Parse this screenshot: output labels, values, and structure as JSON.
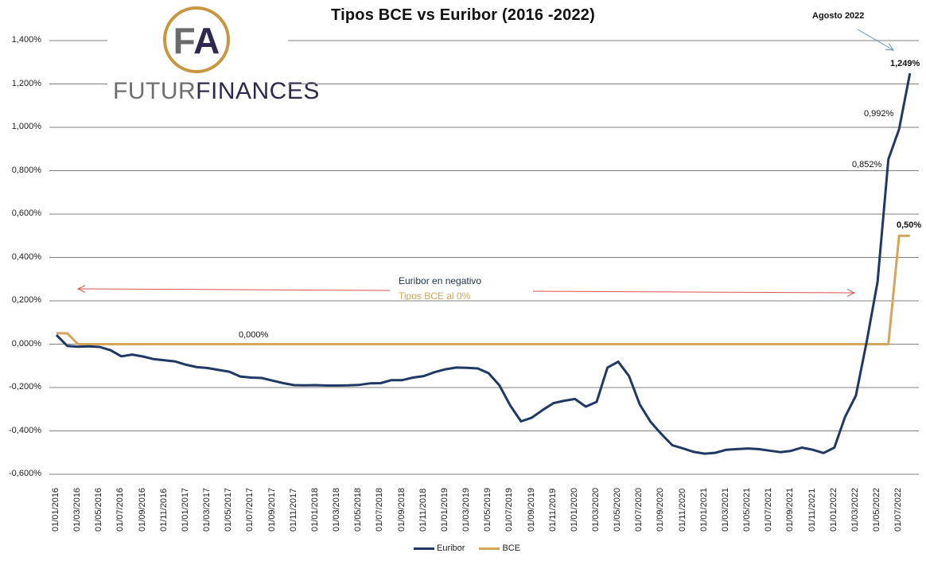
{
  "chart_data": {
    "type": "line",
    "title": "Tipos BCE vs Euribor (2016 -2022)",
    "xlabel": "",
    "ylabel": "",
    "ylim": [
      -0.6,
      1.4
    ],
    "yticks": [
      "1,400%",
      "1,200%",
      "1,000%",
      "0,800%",
      "0,600%",
      "0,400%",
      "0,200%",
      "0,000%",
      "-0,200%",
      "-0,400%",
      "-0,600%"
    ],
    "ytick_values": [
      1.4,
      1.2,
      1.0,
      0.8,
      0.6,
      0.4,
      0.2,
      0.0,
      -0.2,
      -0.4,
      -0.6
    ],
    "grid": true,
    "legend_position": "bottom",
    "x_tick_labels": [
      "01/01/2016",
      "01/03/2016",
      "01/05/2016",
      "01/07/2016",
      "01/09/2016",
      "01/11/2016",
      "01/01/2017",
      "01/03/2017",
      "01/05/2017",
      "01/07/2017",
      "01/09/2017",
      "01/11/2017",
      "01/01/2018",
      "01/03/2018",
      "01/05/2018",
      "01/07/2018",
      "01/09/2018",
      "01/11/2018",
      "01/01/2019",
      "01/03/2019",
      "01/05/2019",
      "01/07/2019",
      "01/09/2019",
      "01/11/2019",
      "01/01/2020",
      "01/03/2020",
      "01/05/2020",
      "01/07/2020",
      "01/09/2020",
      "01/11/2020",
      "01/01/2021",
      "01/03/2021",
      "01/05/2021",
      "01/07/2021",
      "01/09/2021",
      "01/11/2021",
      "01/01/2022",
      "01/03/2022",
      "01/05/2022",
      "01/07/2022"
    ],
    "x": [
      "2016-01",
      "2016-02",
      "2016-03",
      "2016-04",
      "2016-05",
      "2016-06",
      "2016-07",
      "2016-08",
      "2016-09",
      "2016-10",
      "2016-11",
      "2016-12",
      "2017-01",
      "2017-02",
      "2017-03",
      "2017-04",
      "2017-05",
      "2017-06",
      "2017-07",
      "2017-08",
      "2017-09",
      "2017-10",
      "2017-11",
      "2017-12",
      "2018-01",
      "2018-02",
      "2018-03",
      "2018-04",
      "2018-05",
      "2018-06",
      "2018-07",
      "2018-08",
      "2018-09",
      "2018-10",
      "2018-11",
      "2018-12",
      "2019-01",
      "2019-02",
      "2019-03",
      "2019-04",
      "2019-05",
      "2019-06",
      "2019-07",
      "2019-08",
      "2019-09",
      "2019-10",
      "2019-11",
      "2019-12",
      "2020-01",
      "2020-02",
      "2020-03",
      "2020-04",
      "2020-05",
      "2020-06",
      "2020-07",
      "2020-08",
      "2020-09",
      "2020-10",
      "2020-11",
      "2020-12",
      "2021-01",
      "2021-02",
      "2021-03",
      "2021-04",
      "2021-05",
      "2021-06",
      "2021-07",
      "2021-08",
      "2021-09",
      "2021-10",
      "2021-11",
      "2021-12",
      "2022-01",
      "2022-02",
      "2022-03",
      "2022-04",
      "2022-05",
      "2022-06",
      "2022-07",
      "2022-08"
    ],
    "series": [
      {
        "name": "Euribor",
        "color": "#203864",
        "values": [
          0.042,
          -0.008,
          -0.012,
          -0.01,
          -0.013,
          -0.028,
          -0.056,
          -0.048,
          -0.057,
          -0.069,
          -0.074,
          -0.08,
          -0.095,
          -0.106,
          -0.11,
          -0.119,
          -0.127,
          -0.149,
          -0.154,
          -0.156,
          -0.168,
          -0.18,
          -0.189,
          -0.19,
          -0.189,
          -0.191,
          -0.191,
          -0.19,
          -0.188,
          -0.181,
          -0.18,
          -0.166,
          -0.166,
          -0.154,
          -0.147,
          -0.129,
          -0.116,
          -0.108,
          -0.109,
          -0.112,
          -0.134,
          -0.19,
          -0.283,
          -0.356,
          -0.339,
          -0.304,
          -0.272,
          -0.261,
          -0.253,
          -0.288,
          -0.266,
          -0.108,
          -0.081,
          -0.147,
          -0.279,
          -0.359,
          -0.415,
          -0.466,
          -0.481,
          -0.497,
          -0.505,
          -0.501,
          -0.487,
          -0.484,
          -0.481,
          -0.484,
          -0.491,
          -0.498,
          -0.492,
          -0.477,
          -0.487,
          -0.502,
          -0.477,
          -0.335,
          -0.237,
          0.013,
          0.287,
          0.852,
          0.992,
          1.249
        ]
      },
      {
        "name": "BCE",
        "color": "#d4a55a",
        "values": [
          0.05,
          0.05,
          0.0,
          0.0,
          0.0,
          0.0,
          0.0,
          0.0,
          0.0,
          0.0,
          0.0,
          0.0,
          0.0,
          0.0,
          0.0,
          0.0,
          0.0,
          0.0,
          0.0,
          0.0,
          0.0,
          0.0,
          0.0,
          0.0,
          0.0,
          0.0,
          0.0,
          0.0,
          0.0,
          0.0,
          0.0,
          0.0,
          0.0,
          0.0,
          0.0,
          0.0,
          0.0,
          0.0,
          0.0,
          0.0,
          0.0,
          0.0,
          0.0,
          0.0,
          0.0,
          0.0,
          0.0,
          0.0,
          0.0,
          0.0,
          0.0,
          0.0,
          0.0,
          0.0,
          0.0,
          0.0,
          0.0,
          0.0,
          0.0,
          0.0,
          0.0,
          0.0,
          0.0,
          0.0,
          0.0,
          0.0,
          0.0,
          0.0,
          0.0,
          0.0,
          0.0,
          0.0,
          0.0,
          0.0,
          0.0,
          0.0,
          0.0,
          0.0,
          0.5,
          0.5
        ]
      }
    ],
    "annotations": [
      {
        "text": "Agosto 2022",
        "bold": true
      },
      {
        "text": "1,249%",
        "bold": true
      },
      {
        "text": "0,992%",
        "bold": false
      },
      {
        "text": "0,852%",
        "bold": false
      },
      {
        "text": "0,50%",
        "bold": true
      },
      {
        "text": "0,000%",
        "bold": false
      },
      {
        "text": "Euribor en negativo",
        "color": "#1f2f4f"
      },
      {
        "text": "Tipos BCE al 0%",
        "color": "#d4a55a"
      }
    ]
  },
  "header": {
    "title": "Tipos BCE vs Euribor (2016 -2022)"
  },
  "logo": {
    "monogram_left": "F",
    "monogram_right": "A",
    "word_left": "FUTUR",
    "word_right": "FINANCES"
  },
  "annotations": {
    "agosto": "Agosto 2022",
    "val_1249": "1,249%",
    "val_0992": "0,992%",
    "val_0852": "0,852%",
    "val_050": "0,50%",
    "val_0000": "0,000%",
    "euribor_neg": "Euribor en negativo",
    "bce_zero": "Tipos BCE al 0%"
  },
  "legend": {
    "euribor": "Euribor",
    "bce": "BCE"
  },
  "colors": {
    "euribor": "#203864",
    "bce": "#d4a55a",
    "arrow_red": "#d9534f",
    "arrow_blue": "#5b8fc7",
    "grid": "#808080"
  }
}
